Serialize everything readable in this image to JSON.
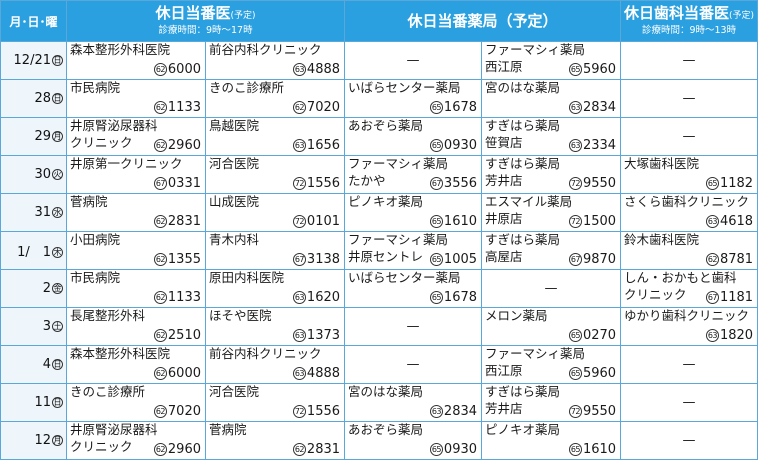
{
  "header": {
    "date_col": "月･日･曜",
    "doctor": {
      "title": "休日当番医",
      "note": "(予定)",
      "hours": "診療時間：9時～17時"
    },
    "pharmacy": {
      "title": "休日当番薬局（予定）"
    },
    "dental": {
      "title": "休日歯科当番医",
      "note": "(予定)",
      "hours": "診療時間：9時～13時"
    }
  },
  "rows": [
    {
      "date": "12/21",
      "wd": "日",
      "d1": {
        "name": "森本整形外科医院",
        "ex": "62",
        "num": "6000"
      },
      "d2": {
        "name": "前谷内科クリニック",
        "ex": "63",
        "num": "4888"
      },
      "p1": {
        "dash": "—"
      },
      "p2": {
        "name": "ファーマシィ薬局",
        "name2": "西江原",
        "ex": "65",
        "num": "5960"
      },
      "dn": {
        "dash": "—"
      }
    },
    {
      "date": "28",
      "wd": "日",
      "d1": {
        "name": "市民病院",
        "ex": "62",
        "num": "1133"
      },
      "d2": {
        "name": "きのこ診療所",
        "ex": "62",
        "num": "7020"
      },
      "p1": {
        "name": "いばらセンター薬局",
        "ex": "65",
        "num": "1678"
      },
      "p2": {
        "name": "宮のはな薬局",
        "ex": "63",
        "num": "2834"
      },
      "dn": {
        "dash": "—"
      }
    },
    {
      "date": "29",
      "wd": "月",
      "d1": {
        "name": "井原腎泌尿器科",
        "name2": "クリニック",
        "ex": "62",
        "num": "2960"
      },
      "d2": {
        "name": "鳥越医院",
        "ex": "63",
        "num": "1656"
      },
      "p1": {
        "name": "あおぞら薬局",
        "ex": "65",
        "num": "0930"
      },
      "p2": {
        "name": "すぎはら薬局",
        "name2": "笹賀店",
        "ex": "63",
        "num": "2334"
      },
      "dn": {
        "dash": "—"
      }
    },
    {
      "date": "30",
      "wd": "火",
      "d1": {
        "name": "井原第一クリニック",
        "ex": "67",
        "num": "0331"
      },
      "d2": {
        "name": "河合医院",
        "ex": "72",
        "num": "1556"
      },
      "p1": {
        "name": "ファーマシィ薬局",
        "name2": "たかや",
        "ex": "67",
        "num": "3556"
      },
      "p2": {
        "name": "すぎはら薬局",
        "name2": "芳井店",
        "ex": "72",
        "num": "9550"
      },
      "dn": {
        "name": "大塚歯科医院",
        "ex": "65",
        "num": "1182"
      }
    },
    {
      "date": "31",
      "wd": "水",
      "d1": {
        "name": "菅病院",
        "ex": "62",
        "num": "2831"
      },
      "d2": {
        "name": "山成医院",
        "ex": "72",
        "num": "0101"
      },
      "p1": {
        "name": "ピノキオ薬局",
        "ex": "65",
        "num": "1610"
      },
      "p2": {
        "name": "エスマイル薬局",
        "name2": "井原店",
        "ex": "72",
        "num": "1500"
      },
      "dn": {
        "name": "さくら歯科クリニック",
        "ex": "63",
        "num": "4618"
      }
    },
    {
      "date": "1/　1",
      "wd": "木",
      "d1": {
        "name": "小田病院",
        "ex": "62",
        "num": "1355"
      },
      "d2": {
        "name": "青木内科",
        "ex": "67",
        "num": "3138"
      },
      "p1": {
        "name": "ファーマシィ薬局",
        "name2": "井原セントレ",
        "ex": "65",
        "num": "1005"
      },
      "p2": {
        "name": "すぎはら薬局",
        "name2": "高屋店",
        "ex": "67",
        "num": "9870"
      },
      "dn": {
        "name": "鈴木歯科医院",
        "ex": "62",
        "num": "8781"
      }
    },
    {
      "date": "2",
      "wd": "金",
      "d1": {
        "name": "市民病院",
        "ex": "62",
        "num": "1133"
      },
      "d2": {
        "name": "原田内科医院",
        "ex": "63",
        "num": "1620"
      },
      "p1": {
        "name": "いばらセンター薬局",
        "ex": "65",
        "num": "1678"
      },
      "p2": {
        "dash": "—"
      },
      "dn": {
        "name": "しん・おかもと歯科",
        "name2": "クリニック",
        "ex": "67",
        "num": "1181"
      }
    },
    {
      "date": "3",
      "wd": "土",
      "d1": {
        "name": "長尾整形外科",
        "ex": "62",
        "num": "2510"
      },
      "d2": {
        "name": "ほそや医院",
        "ex": "63",
        "num": "1373"
      },
      "p1": {
        "dash": "—"
      },
      "p2": {
        "name": "メロン薬局",
        "ex": "65",
        "num": "0270"
      },
      "dn": {
        "name": "ゆかり歯科クリニック",
        "ex": "63",
        "num": "1820"
      }
    },
    {
      "date": "4",
      "wd": "日",
      "d1": {
        "name": "森本整形外科医院",
        "ex": "62",
        "num": "6000"
      },
      "d2": {
        "name": "前谷内科クリニック",
        "ex": "63",
        "num": "4888"
      },
      "p1": {
        "dash": "—"
      },
      "p2": {
        "name": "ファーマシィ薬局",
        "name2": "西江原",
        "ex": "65",
        "num": "5960"
      },
      "dn": {
        "dash": "—"
      }
    },
    {
      "date": "11",
      "wd": "日",
      "d1": {
        "name": "きのこ診療所",
        "ex": "62",
        "num": "7020"
      },
      "d2": {
        "name": "河合医院",
        "ex": "72",
        "num": "1556"
      },
      "p1": {
        "name": "宮のはな薬局",
        "ex": "63",
        "num": "2834"
      },
      "p2": {
        "name": "すぎはら薬局",
        "name2": "芳井店",
        "ex": "72",
        "num": "9550"
      },
      "dn": {
        "dash": "—"
      }
    },
    {
      "date": "12",
      "wd": "月",
      "d1": {
        "name": "井原腎泌尿器科",
        "name2": "クリニック",
        "ex": "62",
        "num": "2960"
      },
      "d2": {
        "name": "菅病院",
        "ex": "62",
        "num": "2831"
      },
      "p1": {
        "name": "あおぞら薬局",
        "ex": "65",
        "num": "0930"
      },
      "p2": {
        "name": "ピノキオ薬局",
        "ex": "65",
        "num": "1610"
      },
      "dn": {
        "dash": "—"
      }
    }
  ]
}
